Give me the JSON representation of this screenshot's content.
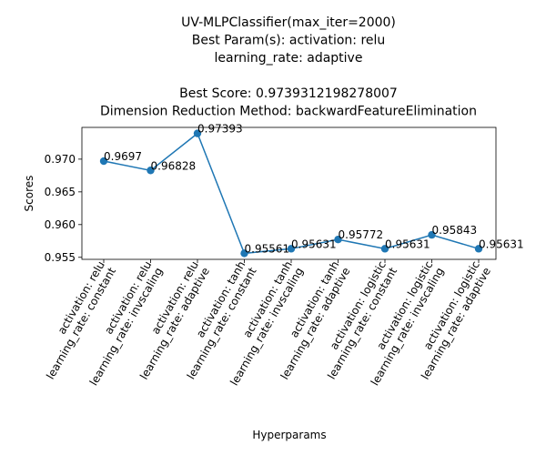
{
  "chart_data": {
    "type": "line",
    "title_lines": [
      "UV-MLPClassifier(max_iter=2000)",
      "Best Param(s): activation: relu",
      "learning_rate: adaptive",
      "",
      "Best Score: 0.9739312198278007",
      "Dimension Reduction Method: backwardFeatureElimination"
    ],
    "xlabel": "Hyperparams",
    "ylabel": "Scores",
    "categories": [
      [
        "activation: relu",
        "learning_rate: constant"
      ],
      [
        "activation: relu",
        "learning_rate: invscaling"
      ],
      [
        "activation: relu",
        "learning_rate: adaptive"
      ],
      [
        "activation: tanh",
        "learning_rate: constant"
      ],
      [
        "activation: tanh",
        "learning_rate: invscaling"
      ],
      [
        "activation: tanh",
        "learning_rate: adaptive"
      ],
      [
        "activation: logistic",
        "learning_rate: constant"
      ],
      [
        "activation: logistic",
        "learning_rate: invscaling"
      ],
      [
        "activation: logistic",
        "learning_rate: adaptive"
      ]
    ],
    "values": [
      0.9697,
      0.96828,
      0.97393,
      0.95561,
      0.95631,
      0.95772,
      0.95631,
      0.95843,
      0.95631
    ],
    "point_labels": [
      "0.9697",
      "0.96828",
      "0.97393",
      "0.95561",
      "0.95631",
      "0.95772",
      "0.95631",
      "0.95843",
      "0.95631"
    ],
    "yticks": [
      0.955,
      0.96,
      0.965,
      0.97
    ],
    "ytick_labels": [
      "0.955",
      "0.960",
      "0.965",
      "0.970"
    ],
    "ylim": [
      0.95469,
      0.97485
    ],
    "grid": false,
    "color": "#1f77b4"
  }
}
